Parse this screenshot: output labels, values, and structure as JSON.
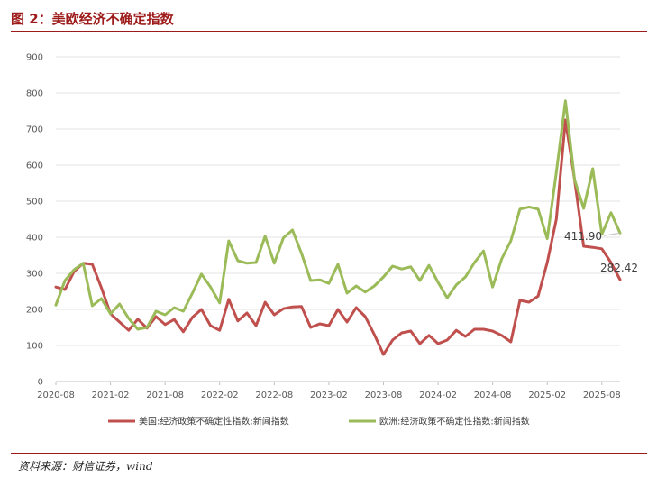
{
  "header": {
    "title": "图 2：美欧经济不确定指数"
  },
  "footer": {
    "source": "资料来源：财信证券，wind"
  },
  "chart_data": {
    "type": "line",
    "title": "",
    "xlabel": "",
    "ylabel": "",
    "ylim": [
      0,
      900
    ],
    "yticks": [
      0,
      100,
      200,
      300,
      400,
      500,
      600,
      700,
      800,
      900
    ],
    "x_start": "2020-08",
    "xticks": [
      "2020-08",
      "2021-02",
      "2021-08",
      "2022-02",
      "2022-08",
      "2023-02",
      "2023-08",
      "2024-02",
      "2024-08",
      "2025-02",
      "2025-08"
    ],
    "grid": true,
    "legend": "bottom",
    "series": [
      {
        "name": "美国:经济政策不确定性指数:新闻指数",
        "color": "#c0504d",
        "values": [
          262,
          255,
          305,
          328,
          325,
          260,
          188,
          165,
          142,
          173,
          148,
          180,
          158,
          172,
          138,
          178,
          200,
          155,
          142,
          228,
          168,
          190,
          155,
          220,
          185,
          202,
          207,
          208,
          150,
          160,
          155,
          200,
          165,
          205,
          180,
          130,
          75,
          115,
          135,
          140,
          105,
          128,
          105,
          115,
          142,
          125,
          145,
          145,
          140,
          128,
          110,
          225,
          220,
          237,
          330,
          450,
          725,
          560,
          375,
          372,
          368,
          330,
          282.42
        ]
      },
      {
        "name": "欧洲:经济政策不确定性指数:新闻指数",
        "color": "#9bbb59",
        "values": [
          212,
          280,
          310,
          328,
          210,
          230,
          188,
          215,
          175,
          145,
          150,
          195,
          185,
          205,
          195,
          245,
          298,
          262,
          218,
          390,
          335,
          328,
          330,
          403,
          328,
          398,
          420,
          355,
          280,
          282,
          272,
          325,
          245,
          265,
          248,
          265,
          290,
          320,
          312,
          318,
          280,
          322,
          275,
          232,
          268,
          290,
          330,
          362,
          262,
          340,
          390,
          478,
          484,
          478,
          396,
          580,
          778,
          560,
          480,
          590,
          408,
          468,
          411.9
        ]
      }
    ],
    "annotations": [
      "411.90",
      "282.42"
    ]
  }
}
